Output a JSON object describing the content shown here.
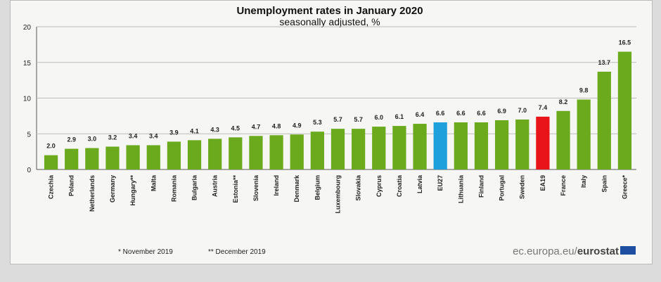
{
  "chart_data": {
    "type": "bar",
    "title": "Unemployment rates in January 2020",
    "subtitle": "seasonally adjusted, %",
    "xlabel": "",
    "ylabel": "",
    "ylim": [
      0,
      20
    ],
    "yticks": [
      0,
      5,
      10,
      15,
      20
    ],
    "grid": true,
    "categories": [
      "Czechia",
      "Poland",
      "Netherlands",
      "Germany",
      "Hungary**",
      "Malta",
      "Romania",
      "Bulgaria",
      "Austria",
      "Estonia**",
      "Slovenia",
      "Ireland",
      "Denmark",
      "Belgium",
      "Luxembourg",
      "Slovakia",
      "Cyprus",
      "Croatia",
      "Latvia",
      "EU27",
      "Lithuania",
      "Finland",
      "Portugal",
      "Sweden",
      "EA19",
      "France",
      "Italy",
      "Spain",
      "Greece*"
    ],
    "values": [
      2.0,
      2.9,
      3.0,
      3.2,
      3.4,
      3.4,
      3.9,
      4.1,
      4.3,
      4.5,
      4.7,
      4.8,
      4.9,
      5.3,
      5.7,
      5.7,
      6.0,
      6.1,
      6.4,
      6.6,
      6.6,
      6.6,
      6.9,
      7.0,
      7.4,
      8.2,
      9.8,
      13.7,
      16.5
    ],
    "value_labels": [
      "2.0",
      "2.9",
      "3.0",
      "3.2",
      "3.4",
      "3.4",
      "3.9",
      "4.1",
      "4.3",
      "4.5",
      "4.7",
      "4.8",
      "4.9",
      "5.3",
      "5.7",
      "5.7",
      "6.0",
      "6.1",
      "6.4",
      "6.6",
      "6.6",
      "6.6",
      "6.9",
      "7.0",
      "7.4",
      "8.2",
      "9.8",
      "13.7",
      "16.5"
    ],
    "highlight": {
      "EU27": "#1ea0dc",
      "EA19": "#e8141a"
    },
    "colors": {
      "default": "#6aaa1c"
    },
    "footnotes": [
      "* November 2019",
      "** December 2019"
    ]
  },
  "source": {
    "text_light": "ec.europa.eu/",
    "text_bold": "eurostat"
  }
}
